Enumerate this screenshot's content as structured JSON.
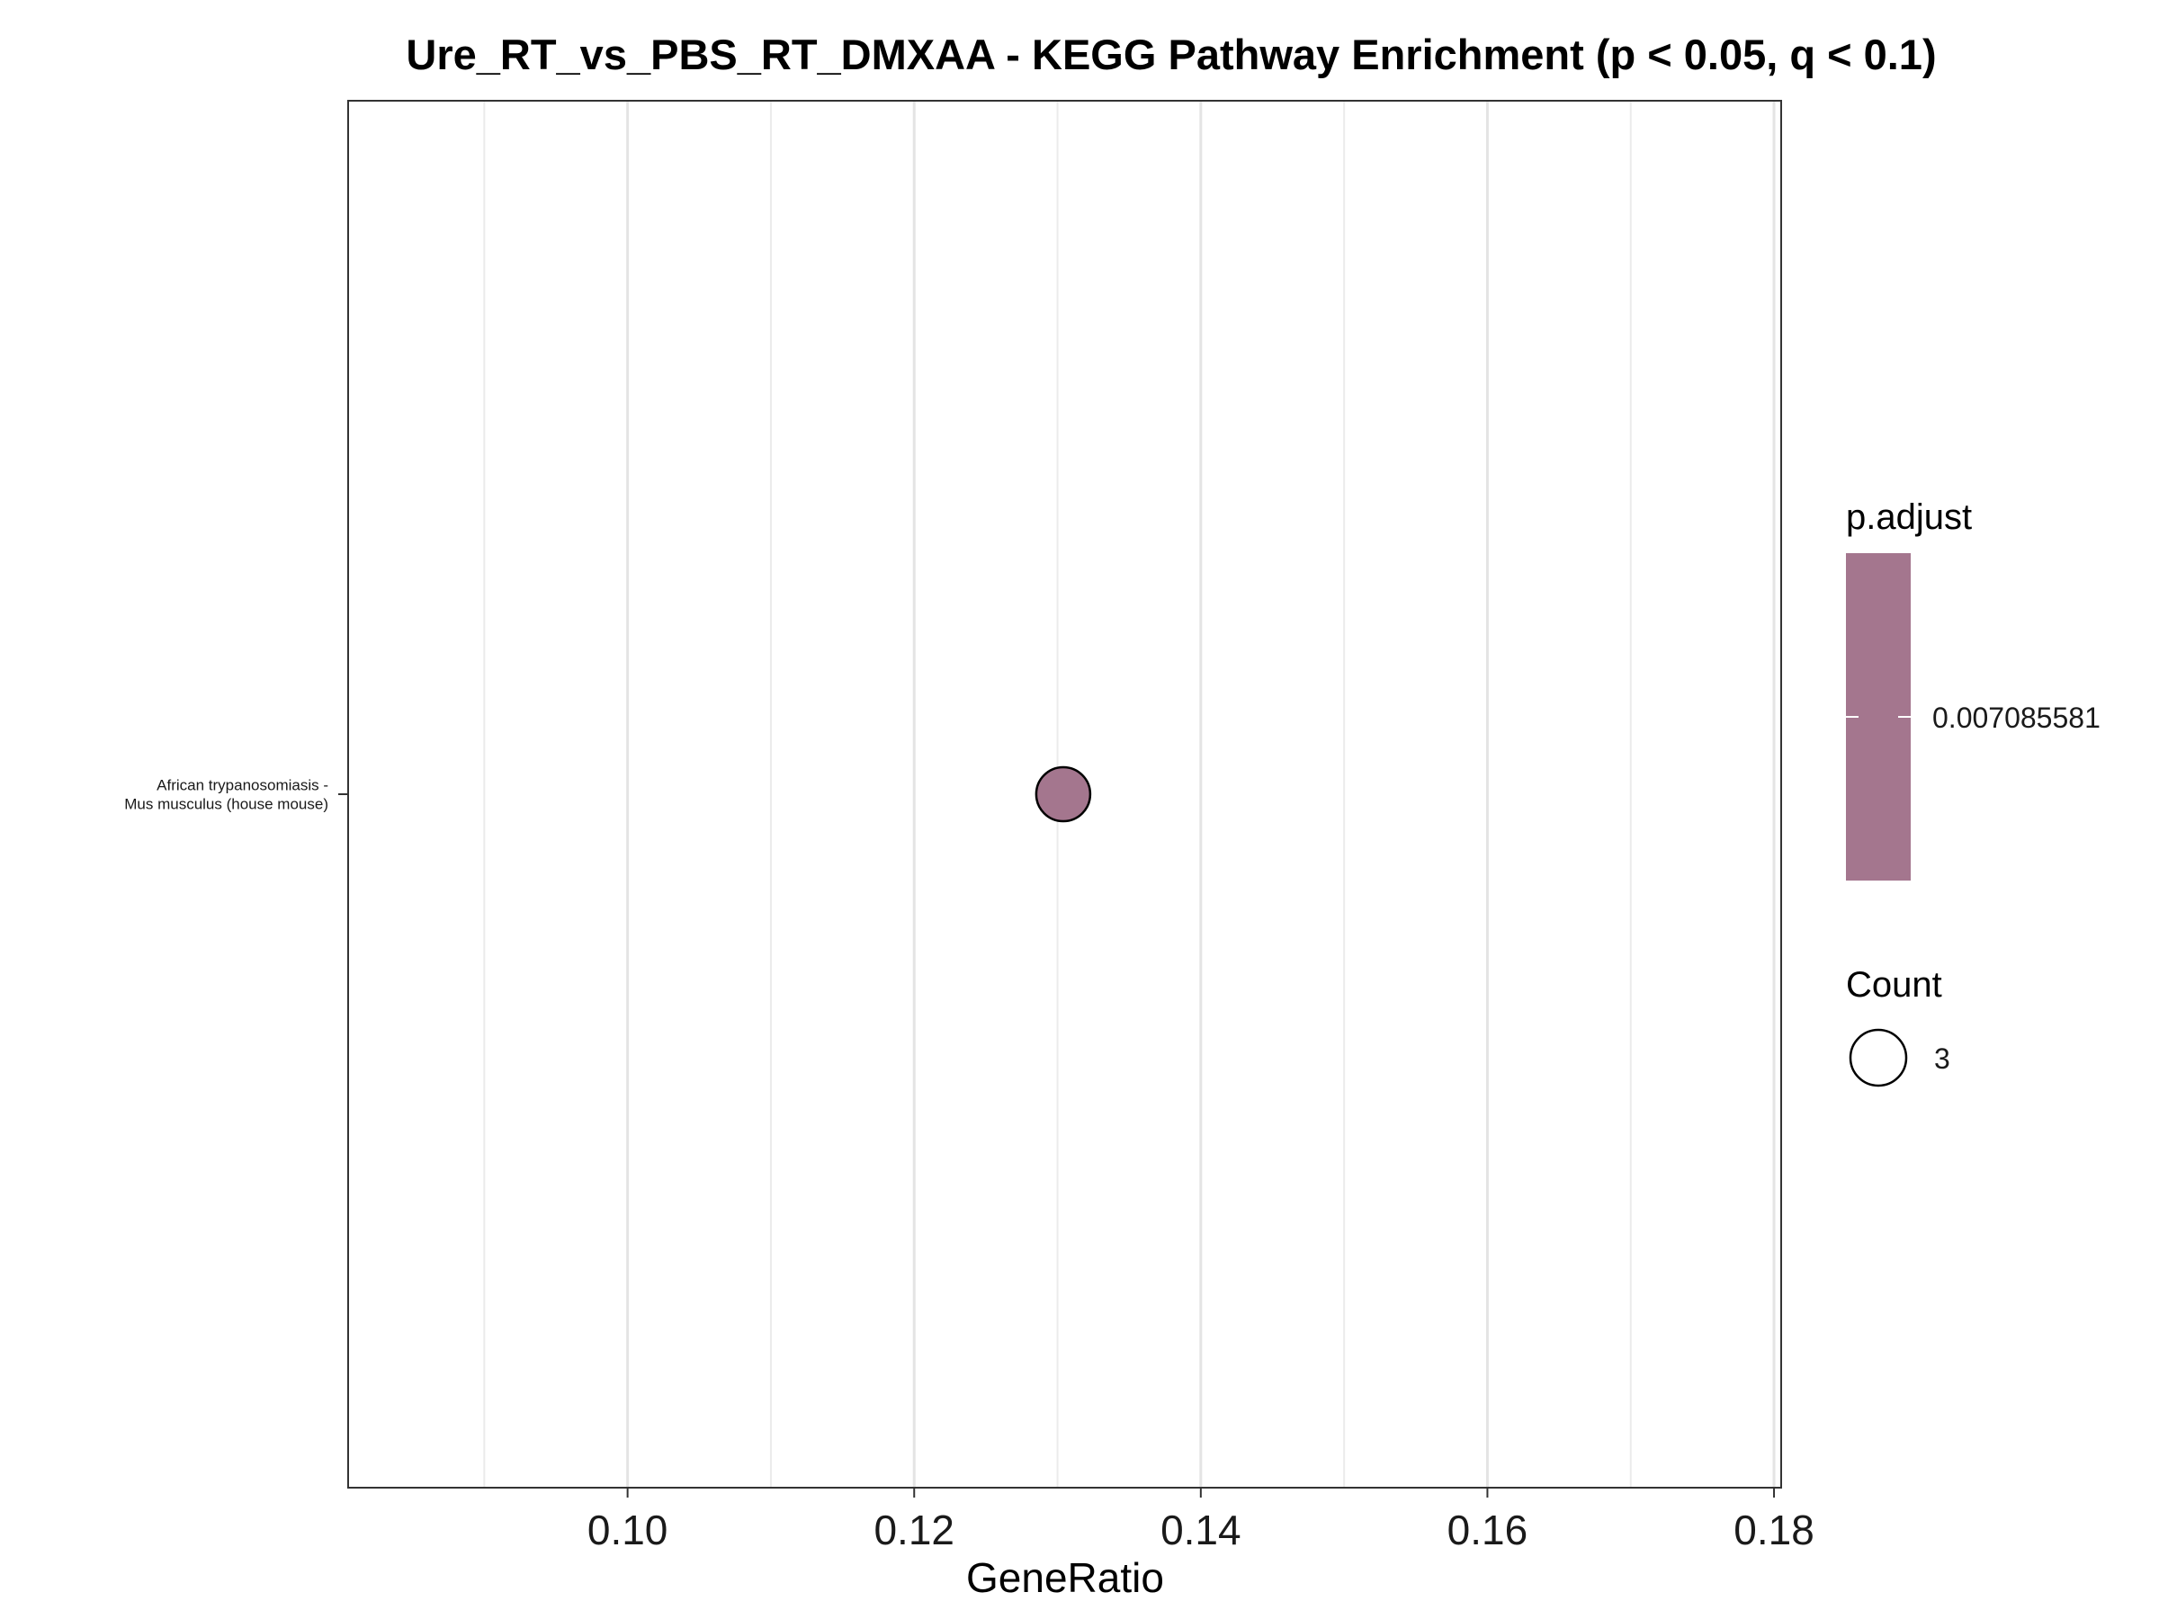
{
  "chart_data": {
    "type": "scatter",
    "title": "Ure_RT_vs_PBS_RT_DMXAA - KEGG Pathway Enrichment (p < 0.05, q < 0.1)",
    "xlabel": "GeneRatio",
    "ylabel": "",
    "xlim": [
      0.0805,
      0.1805
    ],
    "x_ticks": [
      0.1,
      0.12,
      0.14,
      0.16,
      0.18
    ],
    "x_tick_labels": [
      "0.10",
      "0.12",
      "0.14",
      "0.16",
      "0.18"
    ],
    "x_minor_ticks": [
      0.09,
      0.11,
      0.13,
      0.15,
      0.17
    ],
    "grid": "vertical",
    "categories": [
      {
        "lines": [
          "African trypanosomiasis -",
          "Mus musculus (house mouse)"
        ]
      }
    ],
    "points": [
      {
        "category_index": 0,
        "gene_ratio": 0.1304,
        "count": 3,
        "p_adjust": 0.007085581,
        "color": "#a4768e"
      }
    ],
    "legend": {
      "placement": "right",
      "color_title": "p.adjust",
      "color_label": "0.007085581",
      "color": "#a4768e",
      "size_title": "Count",
      "size_label": "3"
    }
  }
}
